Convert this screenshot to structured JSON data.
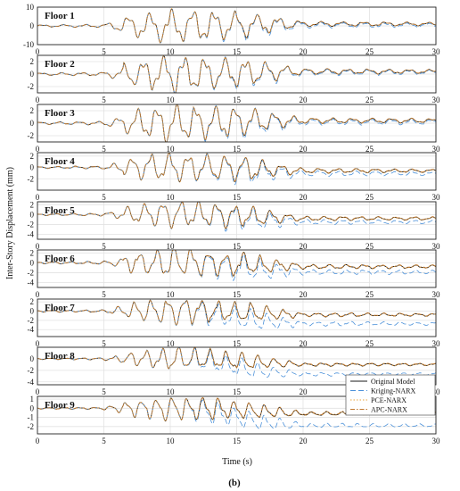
{
  "chart_data": {
    "type": "line",
    "xlabel": "Time (s)",
    "ylabel": "Inter-Story Displacement (mm)",
    "caption": "(b)",
    "xlim": [
      0,
      30
    ],
    "xticks": [
      "0",
      "5",
      "10",
      "15",
      "20",
      "25",
      "30"
    ],
    "grid": true,
    "legend_placement": "bottom-right of Floor 8 panel",
    "series_styles": [
      {
        "name": "Original Model",
        "color": "#1a1a1a",
        "dash": ""
      },
      {
        "name": "Kriging-NARX",
        "color": "#4a90d9",
        "dash": "6,3"
      },
      {
        "name": "PCE-NARX",
        "color": "#e8a33d",
        "dash": "1.5,2"
      },
      {
        "name": "APC-NARX",
        "color": "#c07830",
        "dash": "5,2,1.5,2"
      }
    ],
    "panels": [
      {
        "label": "Floor 1",
        "ylim": [
          -10,
          10
        ],
        "yticks": [
          "-10",
          "0",
          "10"
        ],
        "yvals": [
          -10,
          0,
          10
        ],
        "amplitude": 7,
        "kriging_drift": 0.8,
        "residual": 1.0
      },
      {
        "label": "Floor 2",
        "ylim": [
          -3,
          3
        ],
        "yticks": [
          "-2",
          "0",
          "2"
        ],
        "yvals": [
          -2,
          0,
          2
        ],
        "amplitude": 2.4,
        "kriging_drift": 0.2,
        "residual": 0.4
      },
      {
        "label": "Floor 3",
        "ylim": [
          -3,
          3
        ],
        "yticks": [
          "-2",
          "0",
          "2"
        ],
        "yvals": [
          -2,
          0,
          2
        ],
        "amplitude": 2.4,
        "kriging_drift": 0.3,
        "residual": 0.4
      },
      {
        "label": "Floor 4",
        "ylim": [
          -4,
          2.6
        ],
        "yticks": [
          "-2",
          "0",
          "2"
        ],
        "yvals": [
          -2,
          0,
          2
        ],
        "amplitude": 2.2,
        "kriging_drift": 0.4,
        "residual": -0.6
      },
      {
        "label": "Floor 5",
        "ylim": [
          -5,
          2.6
        ],
        "yticks": [
          "-4",
          "-2",
          "0",
          "2"
        ],
        "yvals": [
          -4,
          -2,
          0,
          2
        ],
        "amplitude": 2.3,
        "kriging_drift": 0.6,
        "residual": -0.8
      },
      {
        "label": "Floor 6",
        "ylim": [
          -5,
          2.6
        ],
        "yticks": [
          "-4",
          "-2",
          "0",
          "2"
        ],
        "yvals": [
          -4,
          -2,
          0,
          2
        ],
        "amplitude": 2.4,
        "kriging_drift": 1.0,
        "residual": -0.8
      },
      {
        "label": "Floor 7",
        "ylim": [
          -5.5,
          2.6
        ],
        "yticks": [
          "-4",
          "-2",
          "0",
          "2"
        ],
        "yvals": [
          -4,
          -2,
          0,
          2
        ],
        "amplitude": 2.3,
        "kriging_drift": 1.8,
        "residual": -0.8
      },
      {
        "label": "Floor 8",
        "ylim": [
          -4.5,
          2
        ],
        "yticks": [
          "-4",
          "-2",
          "0"
        ],
        "yvals": [
          -4,
          -2,
          0
        ],
        "amplitude": 1.5,
        "kriging_drift": 1.5,
        "residual": -1.0
      },
      {
        "label": "Floor 9",
        "ylim": [
          -2.8,
          1.3
        ],
        "yticks": [
          "-2",
          "-1",
          "0",
          "1"
        ],
        "yvals": [
          -2,
          -1,
          0,
          1
        ],
        "amplitude": 1.1,
        "kriging_drift": 1.2,
        "residual": -0.6
      }
    ]
  }
}
